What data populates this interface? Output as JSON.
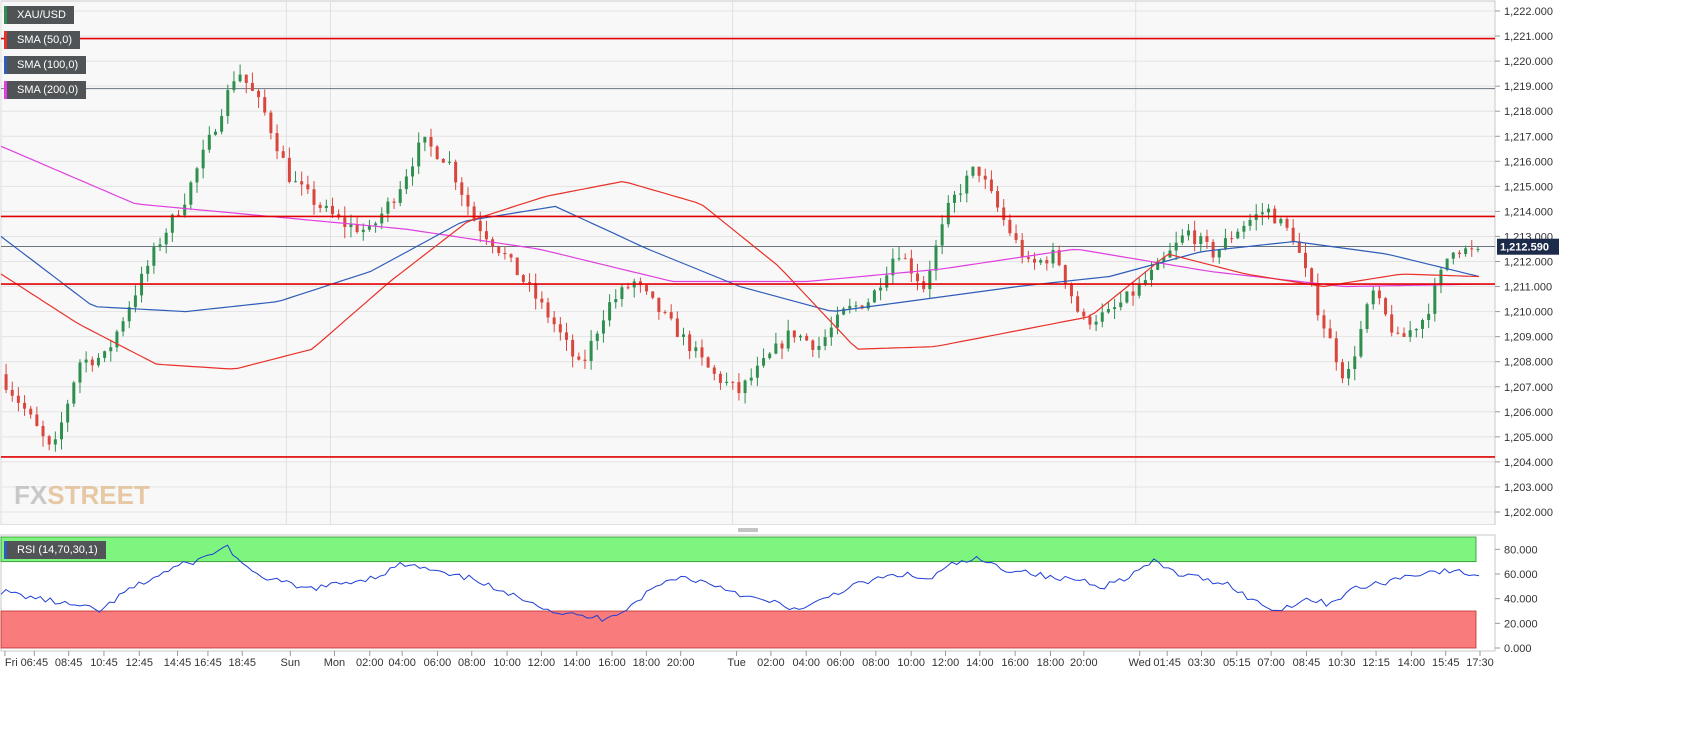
{
  "symbol": "XAU/USD",
  "indicators": [
    {
      "label": "SMA (50,0)",
      "color": "#e8312a"
    },
    {
      "label": "SMA (100,0)",
      "color": "#2e5cb8"
    },
    {
      "label": "SMA (200,0)",
      "color": "#e040e0"
    }
  ],
  "rsi_label": "RSI (14,70,30,1)",
  "current_price_label": "1,212.590",
  "watermark": {
    "fx": "FX",
    "street": "STREET"
  },
  "colors": {
    "bull": "#2f8f4e",
    "bear": "#d9463e",
    "sma50": "#e8312a",
    "sma100": "#2e5cb8",
    "sma200": "#e040e0",
    "hline": "#e00000",
    "rsi_line": "#1f3fd6",
    "rsi_over": "#7ef57e",
    "rsi_under": "#fa7b7b",
    "price_tag": "#1c2b4a"
  },
  "chart_data": [
    {
      "type": "candlestick",
      "series_name": "XAU/USD",
      "ylim": [
        1202,
        1222
      ],
      "y_ticks": [
        "1,202.000",
        "1,203.000",
        "1,204.000",
        "1,205.000",
        "1,206.000",
        "1,207.000",
        "1,208.000",
        "1,209.000",
        "1,210.000",
        "1,211.000",
        "1,212.000",
        "1,213.000",
        "1,214.000",
        "1,215.000",
        "1,216.000",
        "1,217.000",
        "1,218.000",
        "1,219.000",
        "1,220.000",
        "1,221.000",
        "1,222.000"
      ],
      "x_ticks": [
        "Fri",
        "06:45",
        "08:45",
        "10:45",
        "12:45",
        "14:45",
        "16:45",
        "18:45",
        "Sun",
        "Mon",
        "02:00",
        "04:00",
        "06:00",
        "08:00",
        "10:00",
        "12:00",
        "14:00",
        "16:00",
        "18:00",
        "20:00",
        "Tue",
        "02:00",
        "04:00",
        "06:00",
        "08:00",
        "10:00",
        "12:00",
        "14:00",
        "16:00",
        "18:00",
        "20:00",
        "Wed",
        "01:45",
        "03:30",
        "05:15",
        "07:00",
        "08:45",
        "10:30",
        "12:15",
        "14:00",
        "15:45",
        "17:30"
      ],
      "horizontal_levels": [
        1220.9,
        1213.8,
        1211.1,
        1204.2
      ],
      "reference_levels": [
        1218.9,
        1212.6
      ],
      "current_price": 1212.59,
      "sma50_path": [
        1211.5,
        1209.5,
        1207.9,
        1207.7,
        1208.5,
        1211.2,
        1213.6,
        1214.6,
        1215.2,
        1214.3,
        1211.8,
        1208.5,
        1208.6,
        1209.2,
        1209.8,
        1212.3,
        1211.5,
        1211.0,
        1211.5,
        1211.4
      ],
      "sma100_path": [
        1213.0,
        1210.2,
        1210.0,
        1210.4,
        1211.6,
        1213.6,
        1214.2,
        1212.5,
        1211.0,
        1210.0,
        1210.5,
        1211.0,
        1211.4,
        1212.4,
        1212.8,
        1212.3,
        1211.4
      ],
      "sma200_path": [
        1216.6,
        1214.3,
        1213.8,
        1213.3,
        1212.5,
        1211.2,
        1211.2,
        1211.7,
        1212.5,
        1211.6,
        1211.0,
        1211.1
      ],
      "candle_path": [
        1207.5,
        1206.0,
        1204.3,
        1208.0,
        1208.2,
        1210.5,
        1212.7,
        1214.5,
        1217.0,
        1219.7,
        1218.0,
        1215.3,
        1214.3,
        1213.5,
        1213.2,
        1214.7,
        1216.8,
        1216.0,
        1213.6,
        1212.4,
        1211.0,
        1209.5,
        1207.7,
        1210.2,
        1211.2,
        1210.0,
        1208.8,
        1207.5,
        1206.8,
        1208.0,
        1209.2,
        1208.6,
        1210.0,
        1210.5,
        1212.5,
        1211.0,
        1214.3,
        1215.8,
        1213.7,
        1211.8,
        1212.3,
        1209.6,
        1209.9,
        1210.8,
        1211.9,
        1213.2,
        1212.3,
        1213.4,
        1214.1,
        1213.0,
        1209.9,
        1207.2,
        1210.8,
        1208.8,
        1209.8,
        1212.6,
        1212.3
      ],
      "volatility": 0.55
    },
    {
      "type": "line",
      "series_name": "RSI (14,70,30,1)",
      "ylim": [
        0,
        90
      ],
      "y_ticks": [
        "0.000",
        "20.000",
        "40.000",
        "60.000",
        "80.000"
      ],
      "overbought": 70,
      "oversold": 30,
      "values_path": [
        46,
        42,
        38,
        34,
        30,
        46,
        56,
        66,
        72,
        83,
        60,
        55,
        48,
        50,
        54,
        58,
        68,
        64,
        58,
        56,
        44,
        40,
        30,
        26,
        24,
        32,
        48,
        58,
        54,
        48,
        40,
        36,
        30,
        42,
        50,
        56,
        60,
        55,
        68,
        72,
        64,
        62,
        56,
        56,
        50,
        58,
        70,
        60,
        56,
        52,
        38,
        30,
        40,
        36,
        48,
        52,
        58,
        62,
        62,
        59
      ]
    }
  ]
}
